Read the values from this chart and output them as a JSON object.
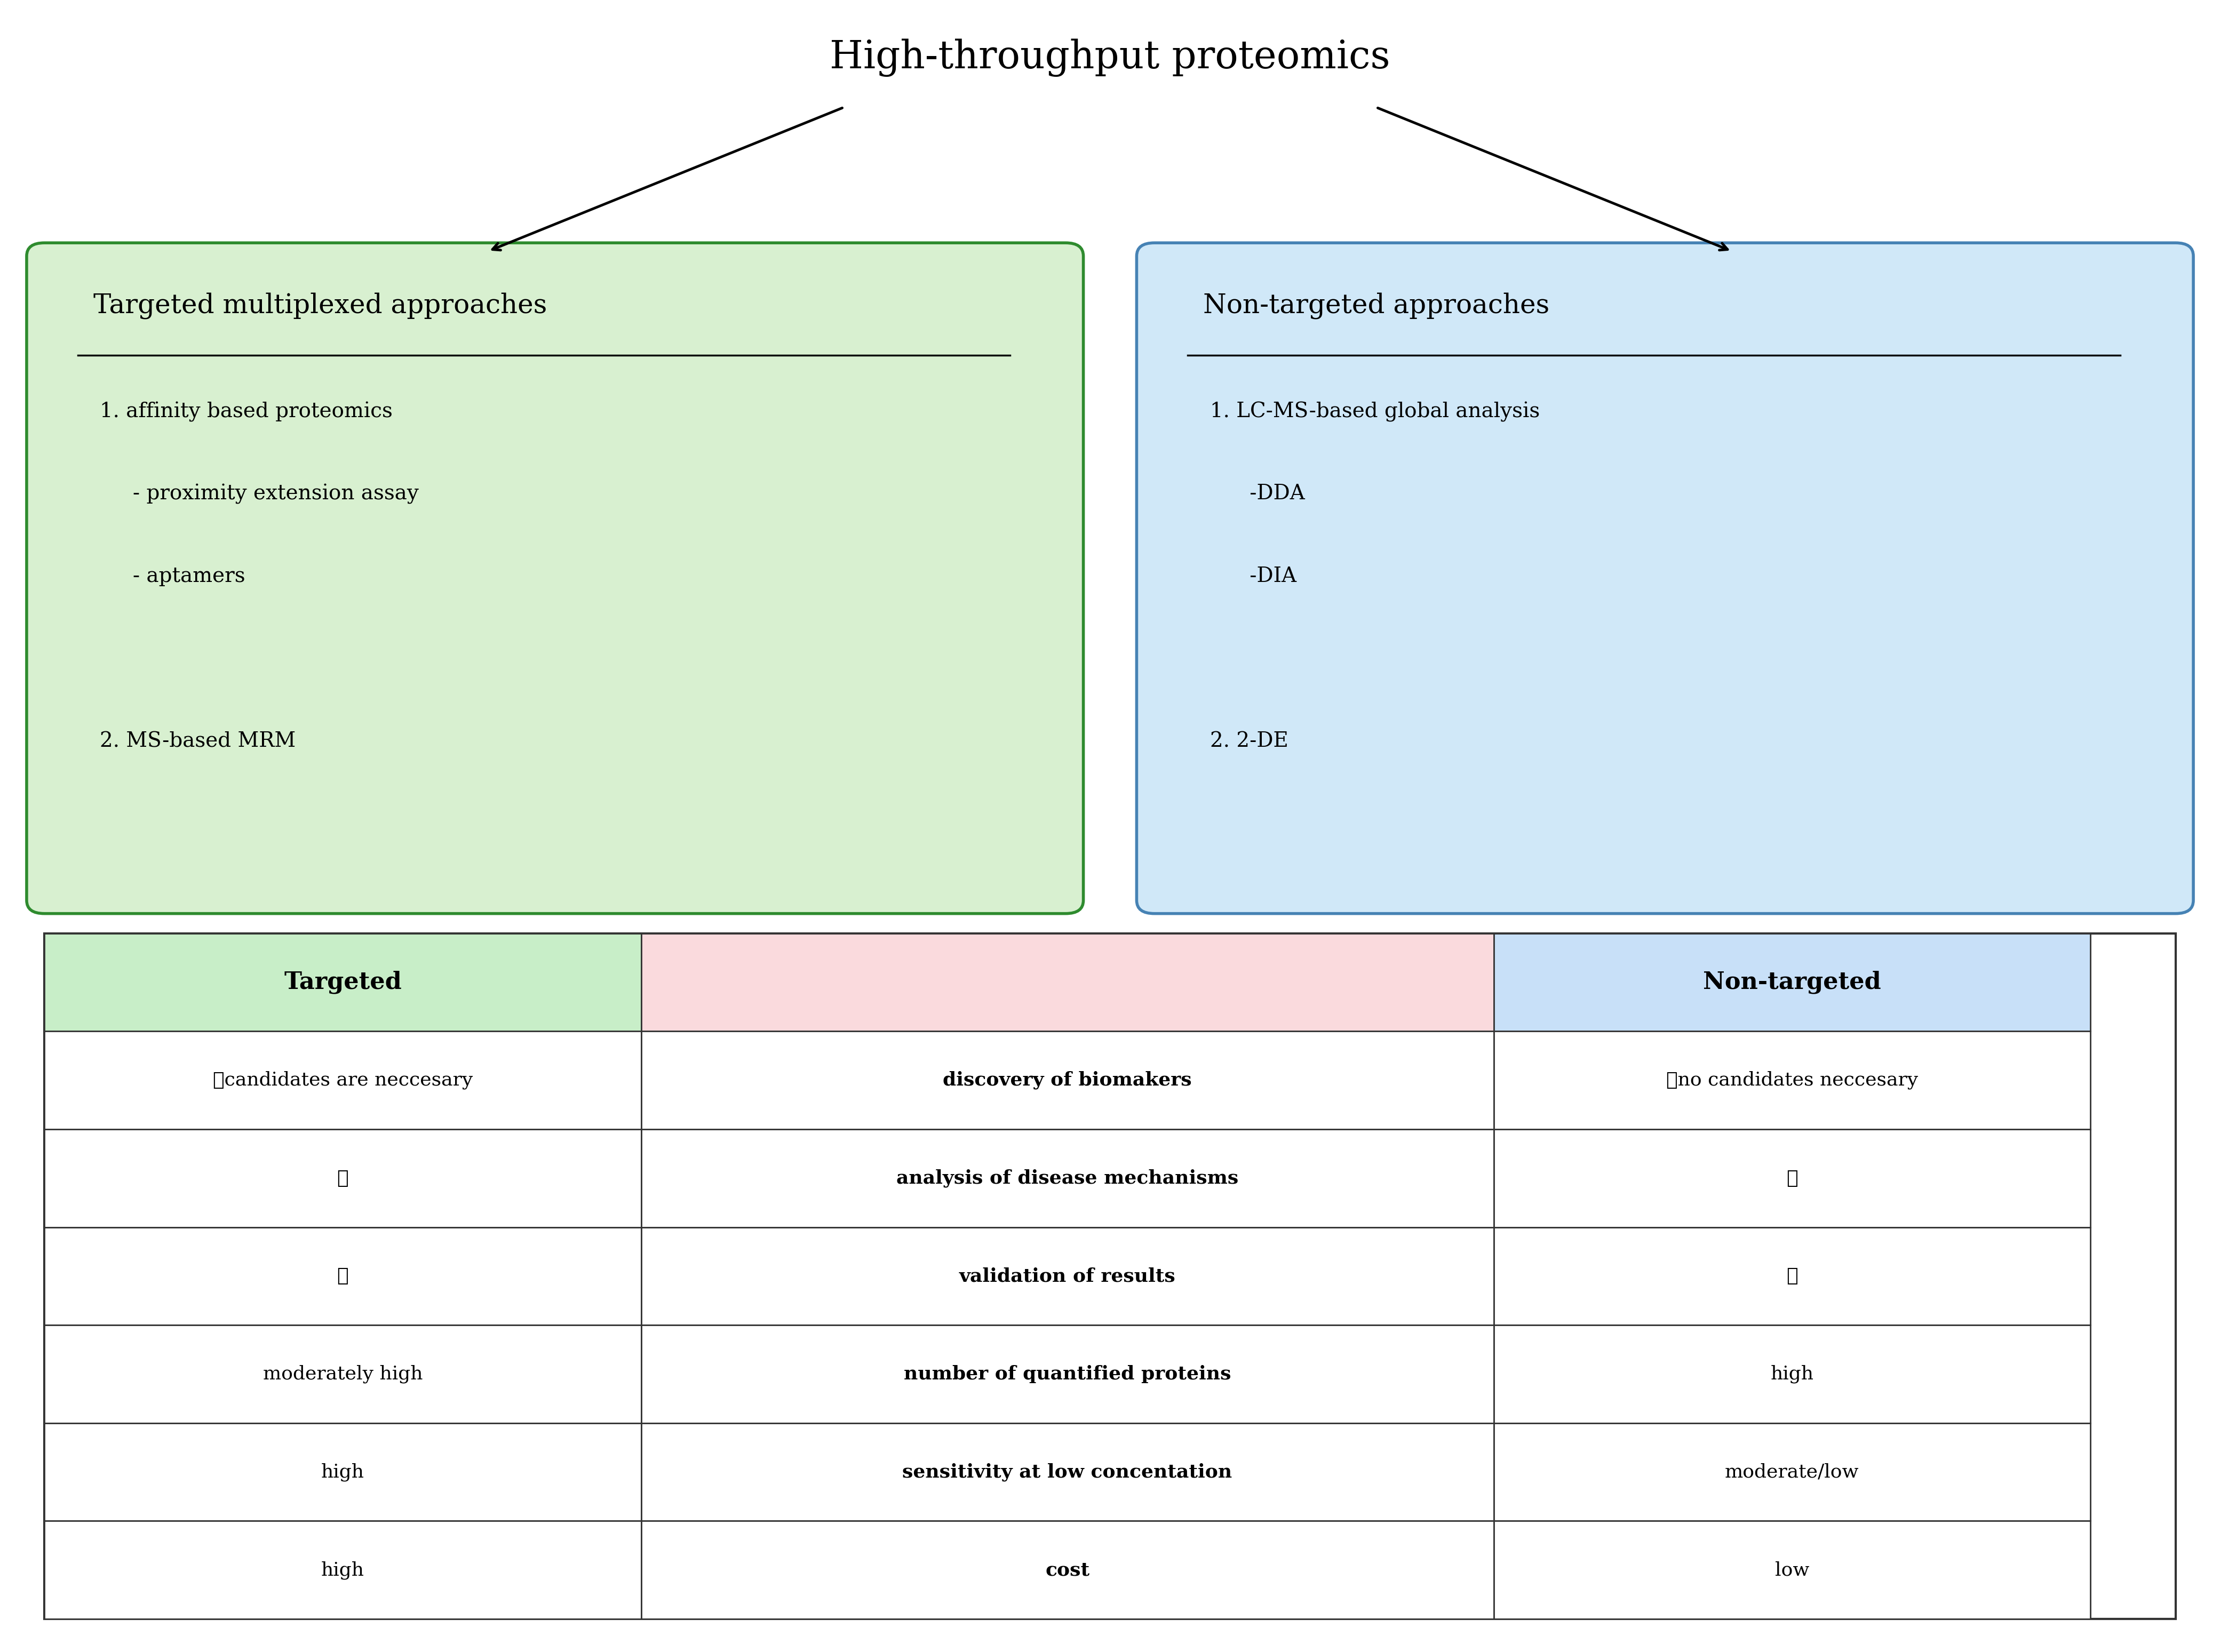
{
  "title": "High-throughput proteomics",
  "title_fontsize": 52,
  "bg_color": "#ffffff",
  "left_box_bg": "#d8f0d0",
  "left_box_border": "#2e8b2e",
  "left_box_title": "Targeted multiplexed approaches",
  "left_box_lines": [
    "1. affinity based proteomics",
    "     - proximity extension assay",
    "     - aptamers",
    "",
    "2. MS-based MRM"
  ],
  "right_box_bg": "#d0e8f8",
  "right_box_border": "#4682b4",
  "right_box_title": "Non-targeted approaches",
  "right_box_lines": [
    "1. LC-MS-based global analysis",
    "      -DDA",
    "      -DIA",
    "",
    "2. 2-DE"
  ],
  "table_header_left_bg": "#c8eec8",
  "table_header_mid_bg": "#fadadd",
  "table_header_right_bg": "#c8e0f8",
  "table_border": "#333333",
  "table_headers": [
    "Targeted",
    "",
    "Non-targeted"
  ],
  "table_rows": [
    [
      "✓candidates are neccesary",
      "discovery of biomakers",
      "✓no candidates neccesary"
    ],
    [
      "✓",
      "analysis of disease mechanisms",
      "✓"
    ],
    [
      "✓",
      "validation of results",
      "✓"
    ],
    [
      "moderately high",
      "number of quantified proteins",
      "high"
    ],
    [
      "high",
      "sensitivity at low concentation",
      "moderate/low"
    ],
    [
      "high",
      "cost",
      "low"
    ]
  ],
  "table_header_fontsize": 32,
  "table_cell_fontsize": 26
}
